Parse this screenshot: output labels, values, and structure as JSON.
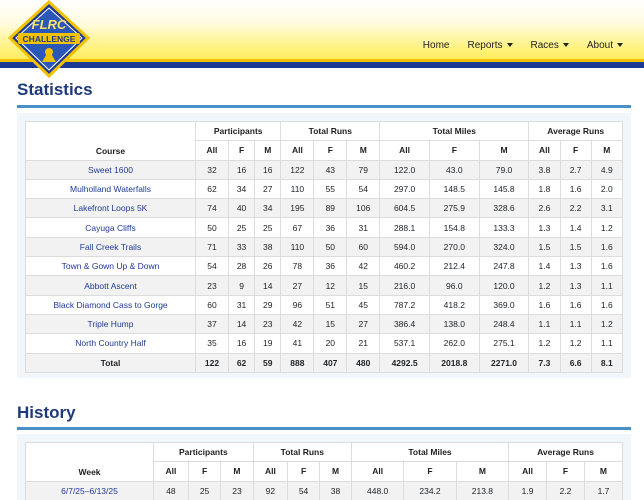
{
  "logo": {
    "line1": "FLRC",
    "line2": "CHALLENGE"
  },
  "nav": {
    "home": "Home",
    "reports": "Reports",
    "races": "Races",
    "about": "About"
  },
  "statistics": {
    "title": "Statistics",
    "group_headers": [
      "Participants",
      "Total Runs",
      "Total Miles",
      "Average Runs"
    ],
    "course_header": "Course",
    "sub_headers": [
      "All",
      "F",
      "M",
      "All",
      "F",
      "M",
      "All",
      "F",
      "M",
      "All",
      "F",
      "M"
    ],
    "rows": [
      [
        "Sweet 1600",
        "32",
        "16",
        "16",
        "122",
        "43",
        "79",
        "122.0",
        "43.0",
        "79.0",
        "3.8",
        "2.7",
        "4.9"
      ],
      [
        "Mulholland Waterfalls",
        "62",
        "34",
        "27",
        "110",
        "55",
        "54",
        "297.0",
        "148.5",
        "145.8",
        "1.8",
        "1.6",
        "2.0"
      ],
      [
        "Lakefront Loops 5K",
        "74",
        "40",
        "34",
        "195",
        "89",
        "106",
        "604.5",
        "275.9",
        "328.6",
        "2.6",
        "2.2",
        "3.1"
      ],
      [
        "Cayuga Cliffs",
        "50",
        "25",
        "25",
        "67",
        "36",
        "31",
        "288.1",
        "154.8",
        "133.3",
        "1.3",
        "1.4",
        "1.2"
      ],
      [
        "Fall Creek Trails",
        "71",
        "33",
        "38",
        "110",
        "50",
        "60",
        "594.0",
        "270.0",
        "324.0",
        "1.5",
        "1.5",
        "1.6"
      ],
      [
        "Town & Gown Up & Down",
        "54",
        "28",
        "26",
        "78",
        "36",
        "42",
        "460.2",
        "212.4",
        "247.8",
        "1.4",
        "1.3",
        "1.6"
      ],
      [
        "Abbott Ascent",
        "23",
        "9",
        "14",
        "27",
        "12",
        "15",
        "216.0",
        "96.0",
        "120.0",
        "1.2",
        "1.3",
        "1.1"
      ],
      [
        "Black Diamond Cass to Gorge",
        "60",
        "31",
        "29",
        "96",
        "51",
        "45",
        "787.2",
        "418.2",
        "369.0",
        "1.6",
        "1.6",
        "1.6"
      ],
      [
        "Triple Hump",
        "37",
        "14",
        "23",
        "42",
        "15",
        "27",
        "386.4",
        "138.0",
        "248.4",
        "1.1",
        "1.1",
        "1.2"
      ],
      [
        "North Country Half",
        "35",
        "16",
        "19",
        "41",
        "20",
        "21",
        "537.1",
        "262.0",
        "275.1",
        "1.2",
        "1.2",
        "1.1"
      ]
    ],
    "total": [
      "Total",
      "122",
      "62",
      "59",
      "888",
      "407",
      "480",
      "4292.5",
      "2018.8",
      "2271.0",
      "7.3",
      "6.6",
      "8.1"
    ]
  },
  "history": {
    "title": "History",
    "group_headers": [
      "Participants",
      "Total Runs",
      "Total Miles",
      "Average Runs"
    ],
    "week_header": "Week",
    "sub_headers": [
      "All",
      "F",
      "M",
      "All",
      "F",
      "M",
      "All",
      "F",
      "M",
      "All",
      "F",
      "M"
    ],
    "rows": [
      [
        "6/7/25–6/13/25",
        "48",
        "25",
        "23",
        "92",
        "54",
        "38",
        "448.0",
        "234.2",
        "213.8",
        "1.9",
        "2.2",
        "1.7"
      ]
    ]
  }
}
